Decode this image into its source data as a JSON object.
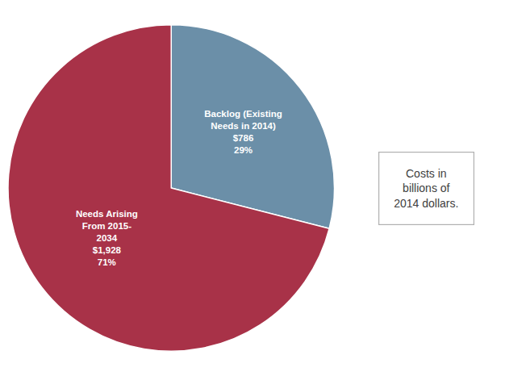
{
  "chart_data": {
    "type": "pie",
    "categories": [
      "Backlog (Existing\nNeeds in 2014)",
      "Needs Arising\nFrom 2015-\n2034"
    ],
    "values": [
      29,
      71
    ],
    "value_labels": [
      "29%",
      "71%"
    ],
    "amounts": [
      786,
      1928
    ],
    "amount_labels": [
      "$786",
      "$1,928"
    ],
    "colors": [
      "#6b8fa8",
      "#a83248"
    ],
    "annotation": "Costs in\nbillions of\n2014 dollars."
  }
}
